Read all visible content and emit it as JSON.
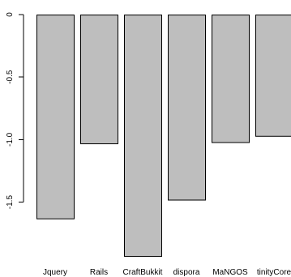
{
  "chart_data": {
    "type": "bar",
    "title": "",
    "xlabel": "",
    "ylabel": "",
    "categories": [
      "Jquery",
      "Rails",
      "CraftBukkit",
      "dispora",
      "MaNGOS",
      "tinityCore"
    ],
    "values": [
      -1.63,
      -1.03,
      -1.93,
      -1.48,
      -1.02,
      -0.97
    ],
    "ylim": [
      -1.93,
      0
    ],
    "y_ticks": [
      0,
      -0.5,
      -1,
      -1.5
    ],
    "y_tick_labels": [
      "0",
      "-0.5",
      "-1.0",
      "-1.5"
    ],
    "bar_color": "#bebebe",
    "bar_border": "#000000",
    "axis_color": "#000000",
    "grid": false,
    "legend": "none"
  }
}
